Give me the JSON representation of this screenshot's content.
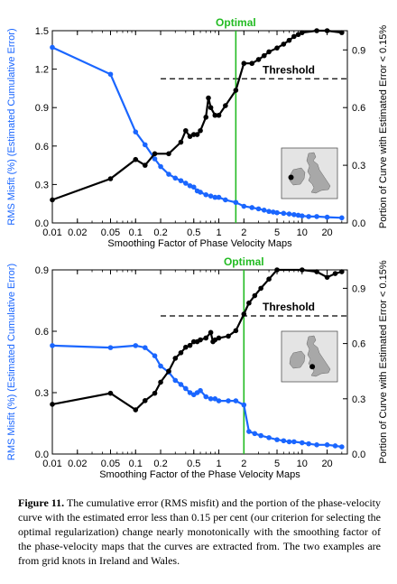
{
  "colors": {
    "blue": "#1a66ff",
    "black": "#000000",
    "green": "#22bb22",
    "map_land": "#a8a8a8"
  },
  "caption": {
    "label": "Figure 11.",
    "text": "The cumulative error (RMS misfit) and the portion of the phase-velocity curve with the estimated error less than 0.15 per cent (our criterion for selecting the optimal regularization) change nearly monotonically with the smoothing factor of the phase-velocity maps that the curves are extracted from. The two examples are from grid knots in Ireland and Wales."
  },
  "chart_data": [
    {
      "type": "line",
      "xlabel": "Smoothing Factor of Phase Velocity Maps",
      "ylabel_left": "RMS Misfit (%) (Estimated Cumulative Error)",
      "ylabel_right": "Portion of Curve with Estimated Error < 0.15%",
      "x_scale": "log",
      "xlim": [
        0.01,
        35
      ],
      "x_ticks": [
        0.01,
        0.02,
        0.05,
        0.1,
        0.2,
        0.5,
        1,
        2,
        5,
        10,
        20
      ],
      "x_tick_labels": [
        "0.01",
        "0.02",
        "0.05",
        "0.1",
        "0.2",
        "0.5",
        "1",
        "2",
        "5",
        "10",
        "20"
      ],
      "ylim_left": [
        0,
        1.5
      ],
      "y_ticks_left": [
        "0.0",
        "0.3",
        "0.6",
        "0.9",
        "1.2",
        "1.5"
      ],
      "ylim_right": [
        0,
        1
      ],
      "y_ticks_right": [
        "0.0",
        "0.3",
        "0.6",
        "0.9"
      ],
      "optimal": {
        "label": "Optimal",
        "x": 1.6
      },
      "threshold": {
        "label": "Threshold",
        "y_right": 0.75,
        "x_start": 0.2,
        "x_end": 35
      },
      "series": [
        {
          "axis": "left",
          "x": [
            0.01,
            0.05,
            0.1,
            0.13,
            0.17,
            0.2,
            0.25,
            0.3,
            0.35,
            0.4,
            0.45,
            0.5,
            0.55,
            0.6,
            0.7,
            0.8,
            0.9,
            1.0,
            1.2,
            1.6,
            2,
            2.5,
            3,
            3.5,
            4,
            4.5,
            5,
            6,
            7,
            8,
            9,
            10,
            12,
            15,
            20,
            30
          ],
          "values": [
            1.37,
            1.16,
            0.71,
            0.61,
            0.5,
            0.44,
            0.38,
            0.35,
            0.33,
            0.31,
            0.29,
            0.28,
            0.25,
            0.24,
            0.22,
            0.21,
            0.2,
            0.2,
            0.18,
            0.16,
            0.13,
            0.12,
            0.11,
            0.1,
            0.09,
            0.085,
            0.08,
            0.075,
            0.07,
            0.065,
            0.06,
            0.055,
            0.05,
            0.05,
            0.045,
            0.04
          ]
        },
        {
          "axis": "right",
          "x": [
            0.01,
            0.05,
            0.1,
            0.13,
            0.17,
            0.25,
            0.35,
            0.4,
            0.45,
            0.5,
            0.55,
            0.6,
            0.7,
            0.75,
            0.8,
            0.9,
            1.0,
            1.2,
            1.6,
            2,
            2.5,
            3,
            3.5,
            4,
            5,
            6,
            7,
            8,
            9,
            10,
            15,
            20,
            30
          ],
          "values": [
            0.12,
            0.23,
            0.33,
            0.3,
            0.36,
            0.36,
            0.42,
            0.48,
            0.45,
            0.46,
            0.46,
            0.48,
            0.55,
            0.65,
            0.6,
            0.56,
            0.56,
            0.61,
            0.69,
            0.83,
            0.83,
            0.85,
            0.87,
            0.89,
            0.91,
            0.93,
            0.95,
            0.97,
            0.98,
            0.99,
            1.0,
            1.0,
            0.99
          ]
        }
      ],
      "inset": {
        "marker_x": 0.17,
        "marker_y": 0.58
      }
    },
    {
      "type": "line",
      "xlabel": "Smoothing Factor of the Phase Velocity Maps",
      "ylabel_left": "RMS Misfit (%) (Estimated Cumulative Error)",
      "ylabel_right": "Portion of Curve with Estimated Error < 0.15%",
      "x_scale": "log",
      "xlim": [
        0.01,
        35
      ],
      "x_ticks": [
        0.01,
        0.02,
        0.05,
        0.1,
        0.2,
        0.5,
        1,
        2,
        5,
        10,
        20
      ],
      "x_tick_labels": [
        "0.01",
        "0.02",
        "0.05",
        "0.1",
        "0.2",
        "0.5",
        "1",
        "2",
        "5",
        "10",
        "20"
      ],
      "ylim_left": [
        0,
        0.9
      ],
      "y_ticks_left": [
        "0.0",
        "0.3",
        "0.6",
        "0.9"
      ],
      "ylim_right": [
        0,
        1
      ],
      "y_ticks_right": [
        "0.0",
        "0.3",
        "0.6",
        "0.9"
      ],
      "optimal": {
        "label": "Optimal",
        "x": 2.0
      },
      "threshold": {
        "label": "Threshold",
        "y_right": 0.75,
        "x_start": 0.2,
        "x_end": 35
      },
      "series": [
        {
          "axis": "left",
          "x": [
            0.01,
            0.05,
            0.1,
            0.13,
            0.17,
            0.2,
            0.25,
            0.3,
            0.35,
            0.4,
            0.45,
            0.5,
            0.55,
            0.6,
            0.7,
            0.8,
            0.9,
            1.0,
            1.3,
            1.6,
            2,
            2.3,
            2.7,
            3.2,
            4,
            5,
            6,
            7,
            8,
            10,
            12,
            15,
            20,
            25,
            30
          ],
          "values": [
            0.53,
            0.52,
            0.53,
            0.52,
            0.48,
            0.43,
            0.4,
            0.36,
            0.34,
            0.32,
            0.3,
            0.29,
            0.3,
            0.31,
            0.28,
            0.27,
            0.27,
            0.26,
            0.26,
            0.26,
            0.24,
            0.11,
            0.1,
            0.09,
            0.08,
            0.07,
            0.065,
            0.06,
            0.06,
            0.055,
            0.05,
            0.045,
            0.045,
            0.04,
            0.035
          ]
        },
        {
          "axis": "right",
          "x": [
            0.01,
            0.05,
            0.1,
            0.13,
            0.17,
            0.2,
            0.25,
            0.3,
            0.35,
            0.4,
            0.45,
            0.5,
            0.55,
            0.6,
            0.7,
            0.8,
            0.85,
            0.9,
            1.0,
            1.3,
            1.6,
            2,
            2.3,
            2.7,
            3.2,
            4,
            5,
            10,
            15,
            20,
            25,
            30
          ],
          "values": [
            0.27,
            0.33,
            0.24,
            0.29,
            0.33,
            0.39,
            0.45,
            0.52,
            0.55,
            0.58,
            0.59,
            0.61,
            0.61,
            0.62,
            0.63,
            0.66,
            0.61,
            0.62,
            0.63,
            0.64,
            0.67,
            0.76,
            0.82,
            0.86,
            0.9,
            0.95,
            1.0,
            1.0,
            0.99,
            0.96,
            0.98,
            0.99
          ]
        }
      ],
      "inset": {
        "marker_x": 0.55,
        "marker_y": 0.7
      }
    }
  ]
}
